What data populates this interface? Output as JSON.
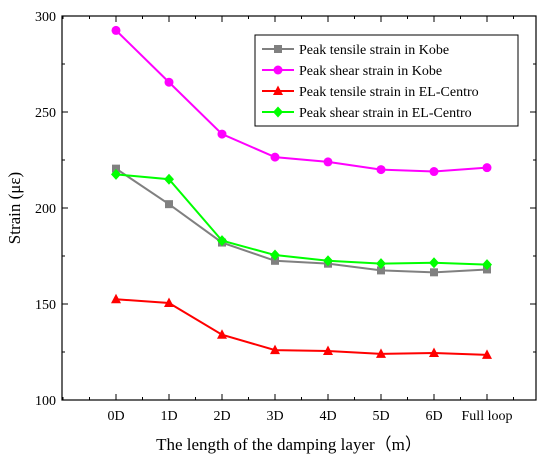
{
  "chart_data": {
    "type": "line",
    "title": "",
    "xlabel": "The length of the damping layer（m）",
    "ylabel": "Strain (με)",
    "categories": [
      "0D",
      "1D",
      "2D",
      "3D",
      "4D",
      "5D",
      "6D",
      "Full loop"
    ],
    "ylim": [
      100,
      300
    ],
    "yticks": [
      100,
      150,
      200,
      250,
      300
    ],
    "grid": false,
    "legend_position": "top-right",
    "series": [
      {
        "name": "Peak tensile strain in Kobe",
        "color": "#808080",
        "marker": "square",
        "values": [
          220.5,
          202,
          182,
          172.5,
          171,
          167.5,
          166.5,
          168
        ]
      },
      {
        "name": "Peak shear strain in Kobe",
        "color": "#ff00ff",
        "marker": "circle",
        "values": [
          292.5,
          265.5,
          238.5,
          226.5,
          224,
          220,
          219,
          221
        ]
      },
      {
        "name": "Peak tensile strain in EL-Centro",
        "color": "#ff0000",
        "marker": "triangle",
        "values": [
          152.5,
          150.5,
          134,
          126,
          125.5,
          124,
          124.5,
          123.5
        ]
      },
      {
        "name": "Peak shear strain in EL-Centro",
        "color": "#00ff00",
        "marker": "diamond",
        "values": [
          217.5,
          215,
          183,
          175.5,
          172.5,
          171,
          171.5,
          170.5
        ]
      }
    ]
  }
}
